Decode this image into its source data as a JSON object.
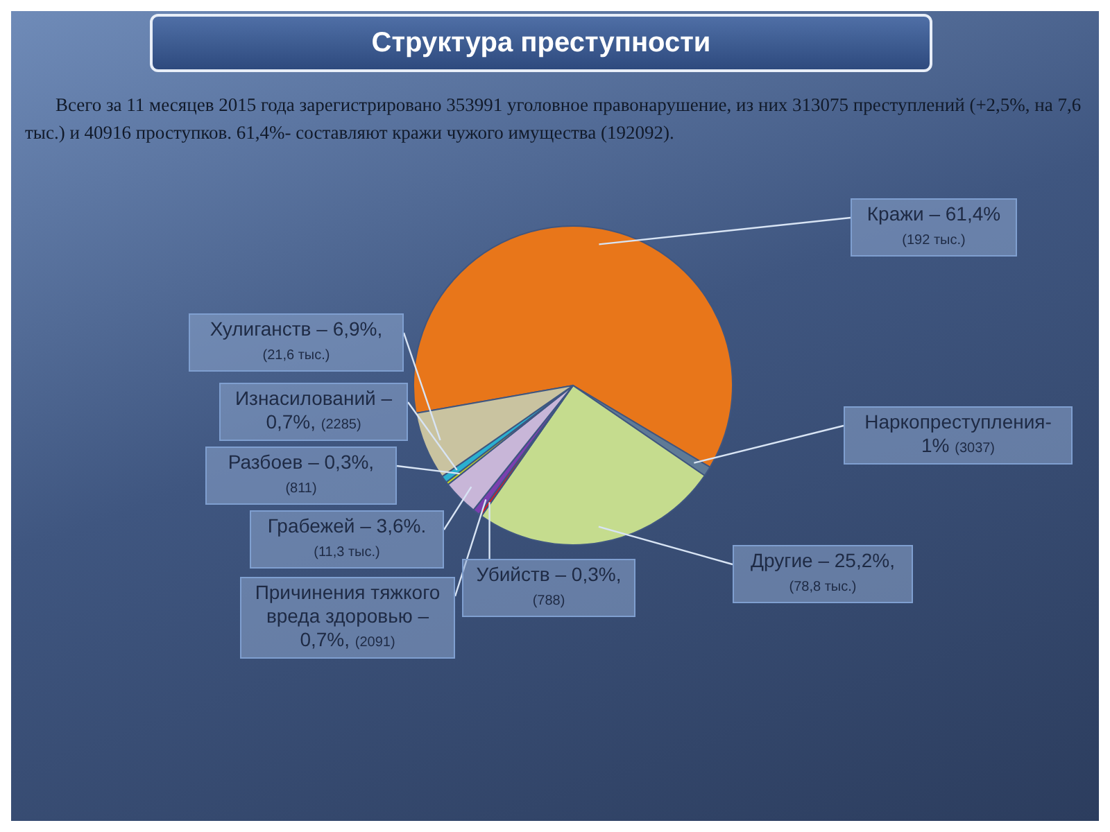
{
  "chart_data": {
    "type": "pie",
    "title": "Структура преступности",
    "subtitle": "Всего за 11 месяцев 2015 года зарегистрировано 353991 уголовное правонарушение, из них 313075 преступлений (+2,5%, на 7,6 тыс.) и 40916 проступков. 61,4%- составляют кражи чужого имущества (192092).",
    "categories": [
      "Кражи –",
      "Наркопреступления-",
      "Другие –",
      "Убийств –",
      "Причинения тяжкого вреда здоровью –",
      "Грабежей –",
      "Разбоев –",
      "Изнасилований –",
      "Хулиганств –"
    ],
    "values": [
      61.4,
      1,
      25.2,
      0.3,
      0.7,
      3.6,
      0.3,
      0.7,
      6.9
    ],
    "value_labels": [
      "61,4%",
      "1%",
      "25,2%,",
      "0,3%,",
      "0,7%,",
      "3,6%.",
      "0,3%,",
      "0,7%,",
      "6,9%,"
    ],
    "annotations": [
      "(192 тыс.)",
      "(3037)",
      "(78,8 тыс.)",
      "(788)",
      "(2091)",
      "(11,3 тыс.)",
      "(811)",
      "(2285)",
      "(21,6 тыс.)"
    ],
    "colors": [
      "#e8761a",
      "#5f7a96",
      "#c5dc8e",
      "#e0141e",
      "#7b3fb0",
      "#c8b6d8",
      "#c8d820",
      "#2ab0d0",
      "#c9c3a0"
    ]
  }
}
